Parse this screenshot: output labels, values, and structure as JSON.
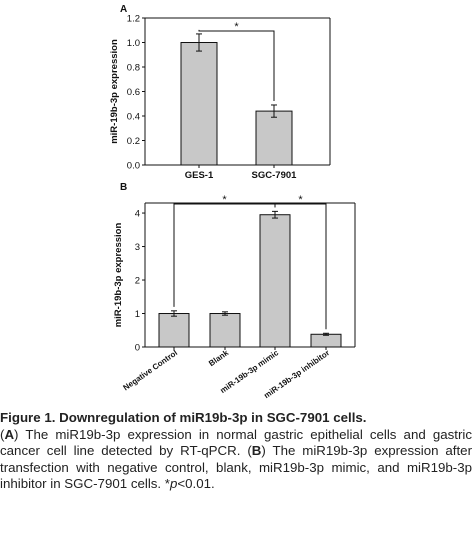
{
  "chart_data": [
    {
      "type": "bar",
      "panel": "A",
      "ylabel": "miR-19b-3p expression",
      "ylim": [
        0.0,
        1.2
      ],
      "yticks": [
        "0.0",
        "0.2",
        "0.4",
        "0.6",
        "0.8",
        "1.0",
        "1.2"
      ],
      "categories": [
        "GES-1",
        "SGC-7901"
      ],
      "values": [
        1.0,
        0.44
      ],
      "errors": [
        0.07,
        0.05
      ],
      "significance": [
        {
          "from": 0,
          "to": 1,
          "label": "*"
        }
      ],
      "bar_color": "#c8c8c8"
    },
    {
      "type": "bar",
      "panel": "B",
      "ylabel": "miR-19b-3p expression",
      "ylim": [
        0,
        4.3
      ],
      "yticks": [
        "0",
        "1",
        "2",
        "3",
        "4"
      ],
      "categories": [
        "Negative Control",
        "Blank",
        "miR-19b-3p mimic",
        "miR-19b-3p inhibitor"
      ],
      "values": [
        1.0,
        1.0,
        3.95,
        0.38
      ],
      "errors": [
        0.08,
        0.05,
        0.1,
        0.03
      ],
      "significance": [
        {
          "from": 0,
          "to": 2,
          "label": "*"
        },
        {
          "from": 2,
          "to": 3,
          "label": "*"
        }
      ],
      "bar_color": "#c8c8c8"
    }
  ],
  "caption": {
    "title": "Figure 1. Downregulation of miR19b-3p in SGC-7901 cells.",
    "p1": "(",
    "p2": "A",
    "p3": ") The miR19b-3p expression in normal gastric epithelial cells and gastric cancer cell line detected by RT-qPCR. (",
    "p4": "B",
    "p5": ") The miR19b-3p expression after transfection with negative control, blank, miR19b-3p mimic, and miR19b-3p inhibitor in SGC-7901 cells. *",
    "p6": "p",
    "p7": "<0.01."
  }
}
